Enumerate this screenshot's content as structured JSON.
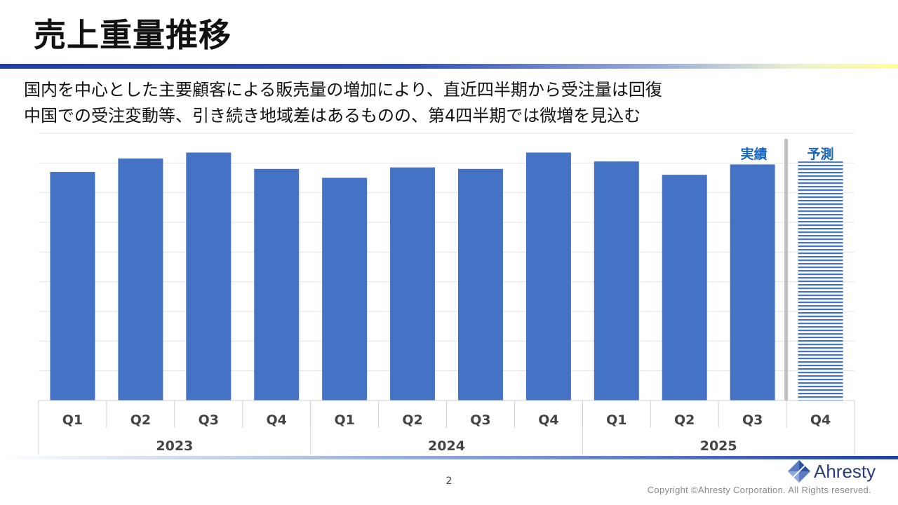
{
  "slide": {
    "title": "売上重量推移",
    "subtitle_line1": "国内を中心とした主要顧客による販売量の増加により、直近四半期から受注量は回復",
    "subtitle_line2": "中国での受注変動等、引き続き地域差はあるものの、第4四半期では微増を見込む",
    "page_number": "2",
    "copyright": "Copyright ©Ahresty Corporation. All Rights reserved.",
    "logo_text": "Ahresty"
  },
  "colors": {
    "bar": "#4472c4",
    "label_accent": "#1565c0",
    "divider": "#bfbfbf"
  },
  "chart_data": {
    "type": "bar",
    "title": "",
    "xlabel": "",
    "ylabel": "",
    "ylim": [
      0,
      90
    ],
    "grid": true,
    "y_tick_labels_shown": false,
    "categories": [
      "Q1",
      "Q2",
      "Q3",
      "Q4",
      "Q1",
      "Q2",
      "Q3",
      "Q4",
      "Q1",
      "Q2",
      "Q3",
      "Q4"
    ],
    "years": [
      {
        "label": "2023",
        "quarters": 4
      },
      {
        "label": "2024",
        "quarters": 4
      },
      {
        "label": "2025",
        "quarters": 4
      }
    ],
    "values": [
      77,
      81.5,
      83.5,
      78,
      75,
      78.5,
      78,
      83.5,
      80.5,
      76,
      79.5,
      80.5
    ],
    "forecast_index": 11,
    "annotations": {
      "actual_label": "実績",
      "forecast_label": "予測"
    }
  }
}
